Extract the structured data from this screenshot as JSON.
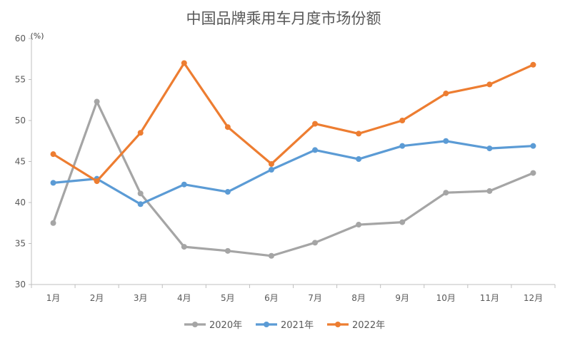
{
  "chart_data": {
    "type": "line",
    "title": "中国品牌乘用车月度市场份额",
    "unit_label": "(%)",
    "xlabel": "",
    "ylabel": "",
    "categories": [
      "1月",
      "2月",
      "3月",
      "4月",
      "5月",
      "6月",
      "7月",
      "8月",
      "9月",
      "10月",
      "11月",
      "12月"
    ],
    "ylim": [
      30,
      60
    ],
    "yticks": [
      30,
      35,
      40,
      45,
      50,
      55,
      60
    ],
    "grid": false,
    "legend_position": "bottom",
    "series": [
      {
        "name": "2020年",
        "color": "#a5a5a5",
        "values": [
          37.5,
          52.3,
          41.1,
          34.6,
          34.1,
          33.5,
          35.1,
          37.3,
          37.6,
          41.2,
          41.4,
          43.6
        ]
      },
      {
        "name": "2021年",
        "color": "#5b9bd5",
        "values": [
          42.4,
          42.9,
          39.8,
          42.2,
          41.3,
          44.0,
          46.4,
          45.3,
          46.9,
          47.5,
          46.6,
          46.9
        ]
      },
      {
        "name": "2022年",
        "color": "#ed7d31",
        "values": [
          45.9,
          42.6,
          48.5,
          57.0,
          49.2,
          44.7,
          49.6,
          48.4,
          50.0,
          53.3,
          54.4,
          56.8
        ]
      }
    ]
  }
}
